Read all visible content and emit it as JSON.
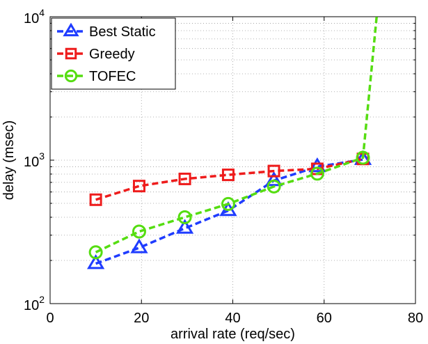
{
  "chart_data": {
    "type": "line",
    "title": "",
    "xlabel": "arrival rate (req/sec)",
    "ylabel": "delay (msec)",
    "xlim": [
      0,
      80
    ],
    "ylim": [
      100,
      10000
    ],
    "yscale": "log",
    "xticks": [
      0,
      20,
      40,
      60,
      80
    ],
    "yticks": [
      {
        "value": 100,
        "base": "10",
        "exp": "2"
      },
      {
        "value": 1000,
        "base": "10",
        "exp": "3"
      },
      {
        "value": 10000,
        "base": "10",
        "exp": "4"
      }
    ],
    "grid": "dotted",
    "legend_position": "top-left",
    "series": [
      {
        "name": "Best Static",
        "color": "#1f3cff",
        "marker": "triangle",
        "x": [
          10,
          19.5,
          29.5,
          39,
          49,
          58.5,
          68.5
        ],
        "y": [
          190,
          245,
          335,
          445,
          720,
          900,
          1010
        ]
      },
      {
        "name": "Greedy",
        "color": "#ee1c1c",
        "marker": "square",
        "x": [
          10,
          19.5,
          29.5,
          39,
          49,
          58.5,
          68.5
        ],
        "y": [
          530,
          660,
          740,
          790,
          840,
          870,
          1020
        ]
      },
      {
        "name": "TOFEC",
        "color": "#55dd11",
        "marker": "circle",
        "x": [
          10,
          19.5,
          29.5,
          39,
          49,
          58.5,
          68.5,
          71.5
        ],
        "y": [
          228,
          318,
          400,
          495,
          655,
          805,
          1040,
          10000
        ]
      }
    ]
  }
}
